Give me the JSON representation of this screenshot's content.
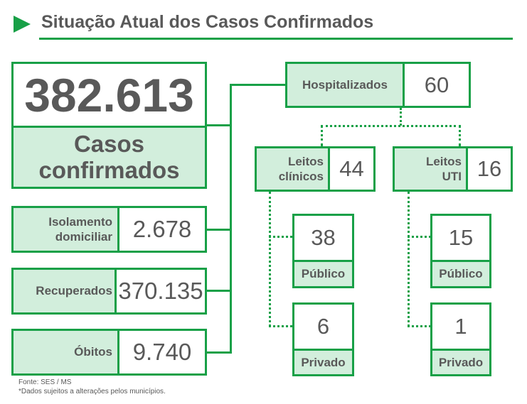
{
  "title": "Situação Atual dos Casos Confirmados",
  "colors": {
    "accent": "#18a047",
    "label_bg": "#d2eedc",
    "text": "#595959"
  },
  "icons": {
    "title_bullet": "triangle-right-icon"
  },
  "total": {
    "value": "382.613",
    "label_line1": "Casos",
    "label_line2": "confirmados"
  },
  "isolamento": {
    "label_line1": "Isolamento",
    "label_line2": "domiciliar",
    "value": "2.678"
  },
  "recuperados": {
    "label": "Recuperados",
    "value": "370.135"
  },
  "obitos": {
    "label": "Óbitos",
    "value": "9.740"
  },
  "hospitalizados": {
    "label": "Hospitalizados",
    "value": "60"
  },
  "leitos_clinicos": {
    "label_line1": "Leitos",
    "label_line2": "clínicos",
    "value": "44",
    "publico": {
      "value": "38",
      "label": "Público"
    },
    "privado": {
      "value": "6",
      "label": "Privado"
    }
  },
  "leitos_uti": {
    "label_line1": "Leitos",
    "label_line2": "UTI",
    "value": "16",
    "publico": {
      "value": "15",
      "label": "Público"
    },
    "privado": {
      "value": "1",
      "label": "Privado"
    }
  },
  "footer": {
    "source": "Fonte: SES / MS",
    "note": "*Dados sujeitos a alterações pelos municípios."
  }
}
